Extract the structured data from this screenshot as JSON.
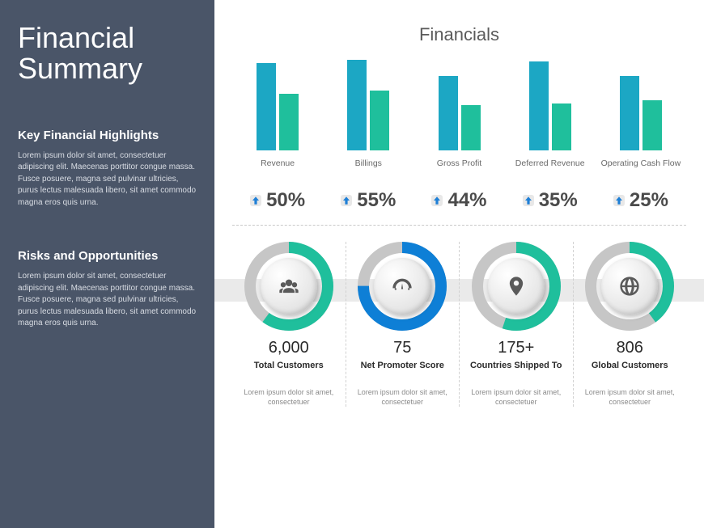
{
  "sidebar": {
    "title": "Financial Summary",
    "sections": [
      {
        "heading": "Key Financial Highlights",
        "body": "Lorem ipsum dolor sit amet, consectetuer adipiscing elit. Maecenas porttitor congue massa. Fusce posuere, magna sed pulvinar ultricies, purus lectus malesuada libero, sit amet commodo  magna eros quis urna."
      },
      {
        "heading": "Risks and Opportunities",
        "body": "Lorem ipsum dolor sit amet, consectetuer adipiscing elit. Maecenas porttitor congue massa. Fusce posuere, magna sed pulvinar ultricies, purus lectus malesuada libero, sit amet commodo  magna eros quis urna."
      }
    ]
  },
  "main_title": "Financials",
  "colors": {
    "bar_a": "#1ca7c4",
    "bar_b": "#1fbf9c",
    "sidebar_bg": "#4a5568",
    "ring_track": "#c6c6c6"
  },
  "charts": [
    {
      "label": "Revenue",
      "bar_a": 108,
      "bar_b": 70,
      "pct": "50%"
    },
    {
      "label": "Billings",
      "bar_a": 112,
      "bar_b": 74,
      "pct": "55%"
    },
    {
      "label": "Gross Profit",
      "bar_a": 92,
      "bar_b": 56,
      "pct": "44%"
    },
    {
      "label": "Deferred Revenue",
      "bar_a": 110,
      "bar_b": 58,
      "pct": "35%"
    },
    {
      "label": "Operating Cash Flow",
      "bar_a": 92,
      "bar_b": 62,
      "pct": "25%"
    }
  ],
  "kpis": [
    {
      "value": "6,000",
      "label": "Total Customers",
      "desc": "Lorem ipsum dolor sit amet, consectetuer",
      "ring_color": "#1fbf9c",
      "ring_pct": 60,
      "icon": "users"
    },
    {
      "value": "75",
      "label": "Net Promoter Score",
      "desc": "Lorem ipsum dolor sit amet, consectetuer",
      "ring_color": "#0e7fd6",
      "ring_pct": 75,
      "icon": "gauge"
    },
    {
      "value": "175+",
      "label": "Countries Shipped To",
      "desc": "Lorem ipsum dolor sit amet, consectetuer",
      "ring_color": "#1fbf9c",
      "ring_pct": 55,
      "icon": "pin"
    },
    {
      "value": "806",
      "label": "Global Customers",
      "desc": "Lorem ipsum dolor sit amet, consectetuer",
      "ring_color": "#1fbf9c",
      "ring_pct": 40,
      "icon": "globe"
    }
  ]
}
